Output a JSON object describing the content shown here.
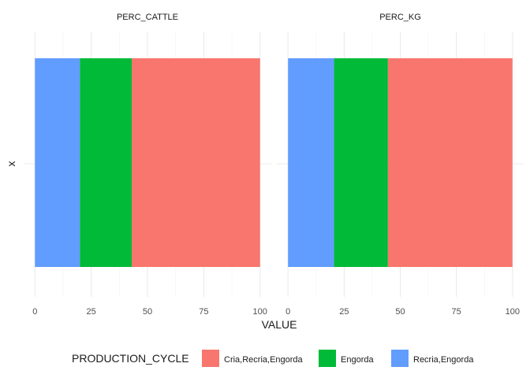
{
  "chart_data": {
    "type": "bar",
    "orientation": "horizontal",
    "stacked": true,
    "xlabel": "VALUE",
    "ylabel": "x",
    "xlim": [
      0,
      100
    ],
    "x_ticks": [
      "0",
      "25",
      "50",
      "75",
      "100"
    ],
    "legend": {
      "title": "PRODUCTION_CYCLE",
      "position": "bottom",
      "entries": [
        "Cria,Recria,Engorda",
        "Engorda",
        "Recria,Engorda"
      ]
    },
    "colors": {
      "Cria,Recria,Engorda": "#F8766D",
      "Engorda": "#00BA38",
      "Recria,Engorda": "#619CFF"
    },
    "stack_order_left_to_right": [
      "Recria,Engorda",
      "Engorda",
      "Cria,Recria,Engorda"
    ],
    "panels": [
      {
        "title": "PERC_CATTLE",
        "category": "x",
        "series": [
          {
            "name": "Recria,Engorda",
            "value": 20
          },
          {
            "name": "Engorda",
            "value": 23
          },
          {
            "name": "Cria,Recria,Engorda",
            "value": 57
          }
        ]
      },
      {
        "title": "PERC_KG",
        "category": "x",
        "series": [
          {
            "name": "Recria,Engorda",
            "value": 20.5
          },
          {
            "name": "Engorda",
            "value": 24
          },
          {
            "name": "Cria,Recria,Engorda",
            "value": 55.5
          }
        ]
      }
    ]
  }
}
